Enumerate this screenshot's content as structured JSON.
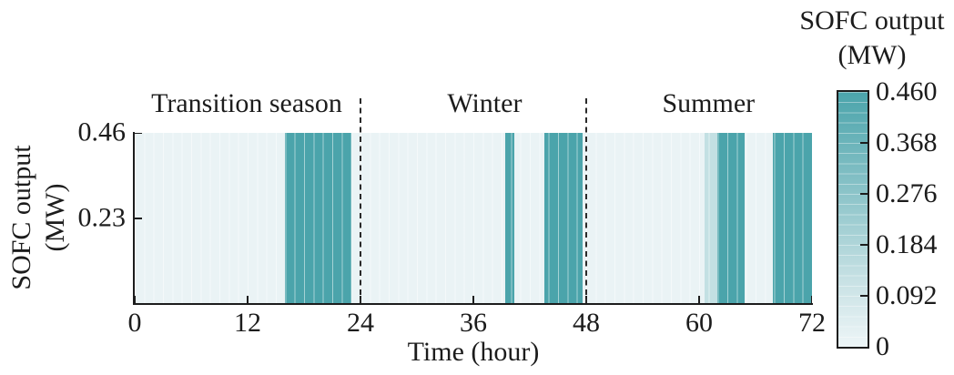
{
  "chart_data": {
    "type": "heatmap",
    "xlabel": "Time (hour)",
    "ylabel": "SOFC output (MW)",
    "ylabel_lines": [
      "SOFC output",
      "(MW)"
    ],
    "xlim": [
      0,
      72
    ],
    "ylim": [
      0,
      0.46
    ],
    "x_ticks": [
      0,
      12,
      24,
      36,
      48,
      60,
      72
    ],
    "y_ticks": [
      {
        "v": 0.46,
        "label": "0.46"
      },
      {
        "v": 0.23,
        "label": "0.23"
      }
    ],
    "grid": "hourly vertical cell lines",
    "annotations": [
      {
        "label": "Transition season",
        "x": 11.9
      },
      {
        "label": "Winter",
        "x": 37.2
      },
      {
        "label": "Summer",
        "x": 61.0
      }
    ],
    "dividers_x": [
      24,
      48
    ],
    "baseline_value": 0,
    "segments": [
      {
        "start": 16.0,
        "end": 23.0,
        "value": 0.46
      },
      {
        "start": 39.4,
        "end": 40.4,
        "value": 0.46
      },
      {
        "start": 43.5,
        "end": 47.6,
        "value": 0.46
      },
      {
        "start": 60.6,
        "end": 61.9,
        "value": 0.12
      },
      {
        "start": 61.9,
        "end": 64.8,
        "value": 0.46
      },
      {
        "start": 67.8,
        "end": 72.0,
        "value": 0.46
      }
    ],
    "colorbar": {
      "title_lines": [
        "SOFC output",
        "(MW)"
      ],
      "tick_labels": [
        "0.460",
        "0.368",
        "0.276",
        "0.184",
        "0.092",
        "0"
      ],
      "tick_values": [
        0.46,
        0.368,
        0.276,
        0.184,
        0.092,
        0
      ],
      "vmin": 0,
      "vmax": 0.46,
      "position": "right"
    },
    "colors": {
      "vmax_color": "#4BA4AB",
      "vmin_color": "#EDF5F7",
      "plot_background": "#EAF3F5",
      "axis_color": "#1d1d1d"
    }
  }
}
